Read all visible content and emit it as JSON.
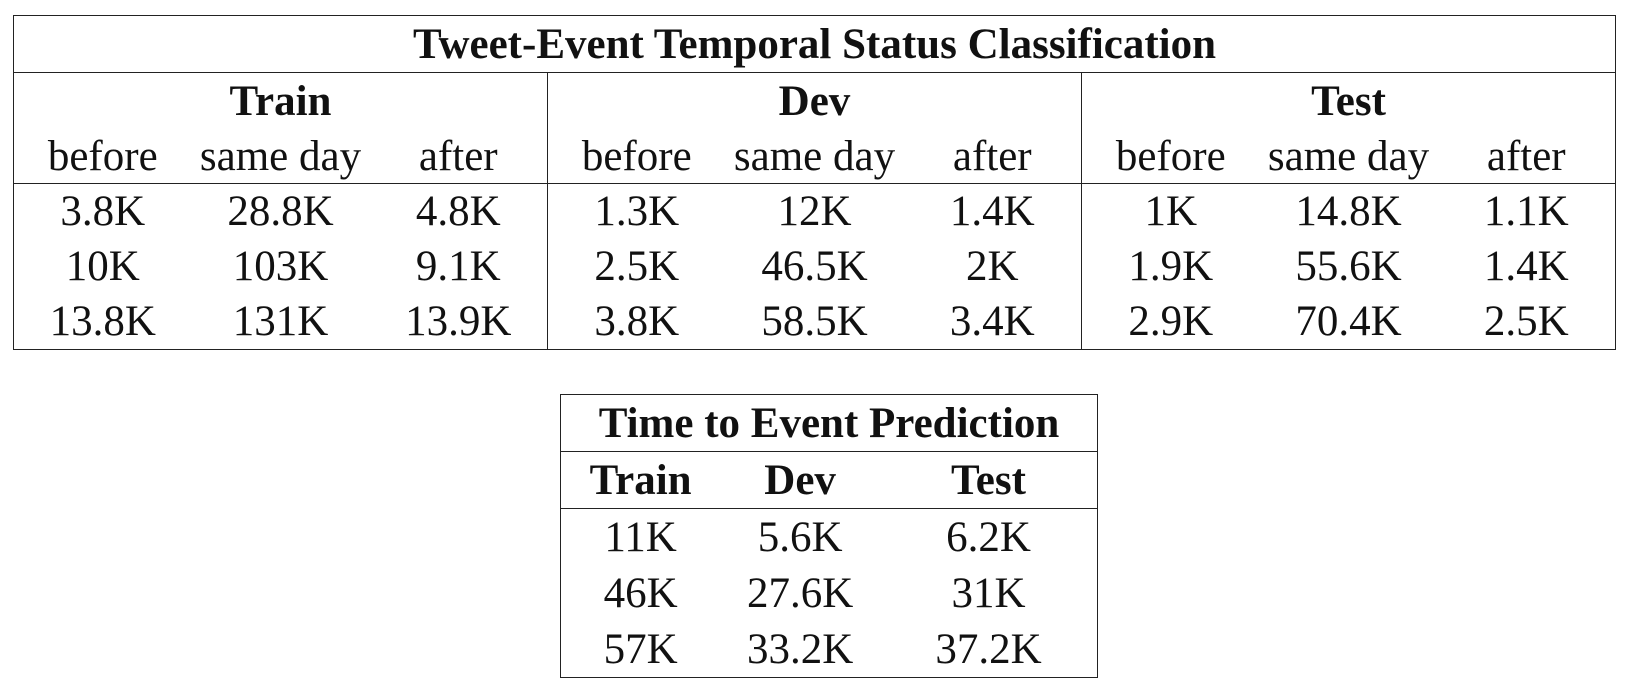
{
  "table1": {
    "title": "Tweet-Event Temporal Status Classification",
    "groups": [
      "Train",
      "Dev",
      "Test"
    ],
    "subheaders": [
      "before",
      "same day",
      "after",
      "before",
      "same day",
      "after",
      "before",
      "same day",
      "after"
    ],
    "rows": [
      [
        "3.8K",
        "28.8K",
        "4.8K",
        "1.3K",
        "12K",
        "1.4K",
        "1K",
        "14.8K",
        "1.1K"
      ],
      [
        "10K",
        "103K",
        "9.1K",
        "2.5K",
        "46.5K",
        "2K",
        "1.9K",
        "55.6K",
        "1.4K"
      ],
      [
        "13.8K",
        "131K",
        "13.9K",
        "3.8K",
        "58.5K",
        "3.4K",
        "2.9K",
        "70.4K",
        "2.5K"
      ]
    ]
  },
  "table2": {
    "title": "Time to Event Prediction",
    "headers": [
      "Train",
      "Dev",
      "Test"
    ],
    "rows": [
      [
        "11K",
        "5.6K",
        "6.2K"
      ],
      [
        "46K",
        "27.6K",
        "31K"
      ],
      [
        "57K",
        "33.2K",
        "37.2K"
      ]
    ]
  }
}
